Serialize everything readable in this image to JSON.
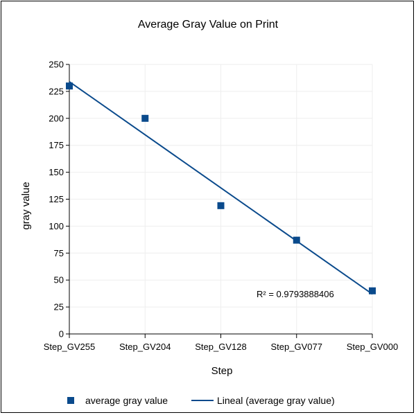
{
  "colors": {
    "marker": "#0a4a8c",
    "trendline": "#0a4a8c",
    "grid": "#eeeeee",
    "axis": "#000000"
  },
  "chart_data": {
    "type": "scatter",
    "title": "Average Gray Value on Print",
    "xlabel": "Step",
    "ylabel": "gray value",
    "categories": [
      "Step_GV255",
      "Step_GV204",
      "Step_GV128",
      "Step_GV077",
      "Step_GV000"
    ],
    "ylim": [
      0,
      250
    ],
    "yticks": [
      0,
      25,
      50,
      75,
      100,
      125,
      150,
      175,
      200,
      225,
      250
    ],
    "grid": true,
    "series": [
      {
        "name": "average gray value",
        "kind": "marker",
        "values": [
          230,
          200,
          119,
          87,
          40
        ]
      }
    ],
    "trendline": {
      "name": "Lineal (average gray value)",
      "kind": "linear",
      "start": 234,
      "end": 37,
      "r2_label": "R² = 0.9793888406"
    },
    "legend_position": "bottom"
  }
}
